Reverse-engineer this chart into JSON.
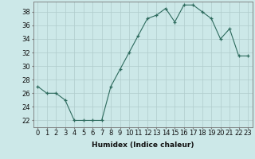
{
  "x": [
    0,
    1,
    2,
    3,
    4,
    5,
    6,
    7,
    8,
    9,
    10,
    11,
    12,
    13,
    14,
    15,
    16,
    17,
    18,
    19,
    20,
    21,
    22,
    23
  ],
  "y": [
    27,
    26,
    26,
    25,
    22,
    22,
    22,
    22,
    27,
    29.5,
    32,
    34.5,
    37,
    37.5,
    38.5,
    36.5,
    39,
    39,
    38,
    37,
    34,
    35.5,
    31.5,
    31.5
  ],
  "line_color": "#2e6b5e",
  "marker": "+",
  "bg_color": "#cce8e8",
  "grid_color": "#b0cccc",
  "xlabel": "Humidex (Indice chaleur)",
  "xlim": [
    -0.5,
    23.5
  ],
  "ylim": [
    21,
    39.5
  ],
  "yticks": [
    22,
    24,
    26,
    28,
    30,
    32,
    34,
    36,
    38
  ],
  "xticks": [
    0,
    1,
    2,
    3,
    4,
    5,
    6,
    7,
    8,
    9,
    10,
    11,
    12,
    13,
    14,
    15,
    16,
    17,
    18,
    19,
    20,
    21,
    22,
    23
  ],
  "label_fontsize": 6.5,
  "tick_fontsize": 6.0
}
